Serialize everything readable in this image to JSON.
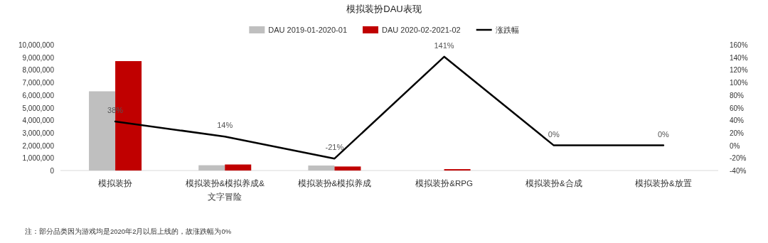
{
  "chart_data": {
    "type": "bar",
    "title": "模拟装扮DAU表现",
    "categories": [
      "模拟装扮",
      "模拟装扮&模拟养成&文字冒险",
      "模拟装扮&模拟养成",
      "模拟装扮&RPG",
      "模拟装扮&合成",
      "模拟装扮&放置"
    ],
    "series": [
      {
        "name": "DAU 2019-01-2020-01",
        "color": "#bfbfbf",
        "values": [
          6300000,
          420000,
          400000,
          null,
          0,
          0
        ]
      },
      {
        "name": "DAU 2020-02-2021-02",
        "color": "#c00000",
        "values": [
          8700000,
          480000,
          320000,
          110000,
          null,
          null
        ]
      },
      {
        "name": "涨跌幅",
        "type": "line",
        "axis": "y2",
        "color": "#000000",
        "values": [
          38,
          14,
          -21,
          141,
          0,
          0
        ],
        "value_labels": [
          "38%",
          "14%",
          "-21%",
          "141%",
          "0%",
          "0%"
        ]
      }
    ],
    "ylim": [
      0,
      10000000
    ],
    "yticks": [
      {
        "value": 0,
        "label": "0"
      },
      {
        "value": 1000000,
        "label": "1,000,000"
      },
      {
        "value": 2000000,
        "label": "2,000,000"
      },
      {
        "value": 3000000,
        "label": "3,000,000"
      },
      {
        "value": 4000000,
        "label": "4,000,000"
      },
      {
        "value": 5000000,
        "label": "5,000,000"
      },
      {
        "value": 6000000,
        "label": "6,000,000"
      },
      {
        "value": 7000000,
        "label": "7,000,000"
      },
      {
        "value": 8000000,
        "label": "8,000,000"
      },
      {
        "value": 9000000,
        "label": "9,000,000"
      },
      {
        "value": 10000000,
        "label": "10,000,000"
      }
    ],
    "y2lim": [
      -40,
      160
    ],
    "y2ticks": [
      {
        "value": -40,
        "label": "-40%"
      },
      {
        "value": -20,
        "label": "-20%"
      },
      {
        "value": 0,
        "label": "0%"
      },
      {
        "value": 20,
        "label": "20%"
      },
      {
        "value": 40,
        "label": "40%"
      },
      {
        "value": 60,
        "label": "60%"
      },
      {
        "value": 80,
        "label": "80%"
      },
      {
        "value": 100,
        "label": "100%"
      },
      {
        "value": 120,
        "label": "120%"
      },
      {
        "value": 140,
        "label": "140%"
      },
      {
        "value": 160,
        "label": "160%"
      }
    ],
    "grid": false,
    "legend": "top",
    "marker": "none",
    "line_style": "solid",
    "annotations": [
      "注：部分品类因为游戏均是2020年2月以后上线的，故涨跌幅为0%"
    ]
  }
}
